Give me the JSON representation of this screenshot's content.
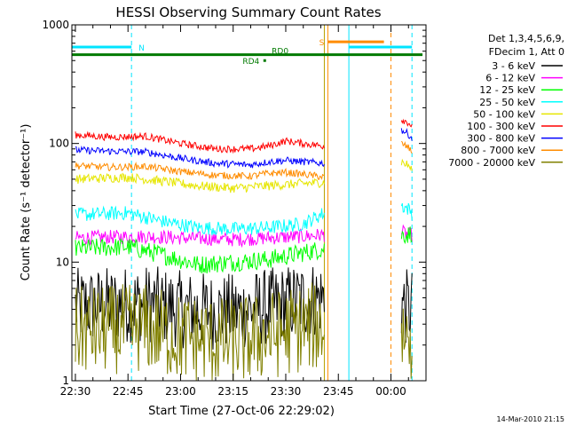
{
  "chart_data": {
    "type": "line",
    "title": "HESSI Observing Summary Count Rates",
    "xlabel": "Start Time (27-Oct-06 22:29:02)",
    "ylabel": "Count Rate (s⁻¹ detector⁻¹)",
    "yscale": "log",
    "ylim": [
      1,
      1000
    ],
    "xlim": [
      "22:29",
      "00:10"
    ],
    "x_ticks": [
      "22:30",
      "22:45",
      "23:00",
      "23:15",
      "23:30",
      "23:45",
      "00:00"
    ],
    "y_ticks": [
      "1",
      "10",
      "100",
      "1000"
    ],
    "grid": false,
    "legend_position": "right",
    "legend_header": [
      "Det 1,3,4,5,6,9,",
      "FDecim 1, Att 0"
    ],
    "footer_timestamp": "14-Mar-2010 21:15",
    "flags": [
      {
        "label": "N",
        "color": "#00e5ff",
        "y": 650,
        "segments": [
          [
            "22:29",
            "22:46"
          ],
          [
            "23:48",
            "00:06"
          ]
        ]
      },
      {
        "label": "S",
        "color": "#ff8c00",
        "y": 720,
        "segments": [
          [
            "23:42",
            "23:58"
          ]
        ]
      },
      {
        "label": "RD0",
        "color": "#007a00",
        "y": 560,
        "segments": [
          [
            "22:29",
            "00:09"
          ]
        ]
      },
      {
        "label": "RD4",
        "color": "#007a00",
        "y": 500,
        "segments": [
          [
            "23:24",
            "23:24"
          ]
        ]
      }
    ],
    "vlines": [
      {
        "time": "22:29",
        "color": "#00e5ff",
        "style": "solid"
      },
      {
        "time": "22:46",
        "color": "#00e5ff",
        "style": "dashed"
      },
      {
        "time": "23:41",
        "color": "#b8a000",
        "style": "solid"
      },
      {
        "time": "23:42",
        "color": "#ff8c00",
        "style": "solid"
      },
      {
        "time": "23:48",
        "color": "#00e5ff",
        "style": "solid"
      },
      {
        "time": "00:00",
        "color": "#ff8c00",
        "style": "dashed"
      },
      {
        "time": "00:06",
        "color": "#00e5ff",
        "style": "dashed"
      }
    ],
    "series": [
      {
        "name": "3 - 6 keV",
        "color": "#000000",
        "noise": 0.33,
        "segments": [
          {
            "times": [
              "22:30",
              "22:50",
              "23:00",
              "23:15",
              "23:25",
              "23:35",
              "23:41"
            ],
            "values": [
              4.2,
              4.5,
              4.0,
              3.8,
              4.2,
              4.8,
              5.0
            ]
          },
          {
            "times": [
              "00:03",
              "00:05",
              "00:06"
            ],
            "values": [
              4.5,
              4.0,
              4.2
            ]
          }
        ]
      },
      {
        "name": "6 - 12 keV",
        "color": "#ff00ff",
        "noise": 0.06,
        "segments": [
          {
            "times": [
              "22:30",
              "22:50",
              "23:00",
              "23:15",
              "23:25",
              "23:35",
              "23:41"
            ],
            "values": [
              16,
              16.5,
              16,
              15.5,
              16,
              16.5,
              17
            ]
          },
          {
            "times": [
              "00:03",
              "00:05",
              "00:06"
            ],
            "values": [
              18,
              17,
              17
            ]
          }
        ]
      },
      {
        "name": "12 - 25 keV",
        "color": "#00ff00",
        "noise": 0.08,
        "segments": [
          {
            "times": [
              "22:30",
              "22:45",
              "22:55",
              "23:05",
              "23:15",
              "23:25",
              "23:35",
              "23:41"
            ],
            "values": [
              13,
              13.5,
              11.5,
              9.5,
              10,
              10.5,
              12,
              13
            ]
          },
          {
            "times": [
              "00:03",
              "00:05",
              "00:06"
            ],
            "values": [
              17,
              17,
              18
            ]
          }
        ]
      },
      {
        "name": "25 - 50 keV",
        "color": "#00ffff",
        "noise": 0.06,
        "segments": [
          {
            "times": [
              "22:30",
              "22:45",
              "22:55",
              "23:05",
              "23:15",
              "23:25",
              "23:35",
              "23:41"
            ],
            "values": [
              25,
              26,
              22,
              19.5,
              19,
              19.5,
              21,
              26
            ]
          },
          {
            "times": [
              "00:03",
              "00:05",
              "00:06"
            ],
            "values": [
              30,
              28,
              26
            ]
          }
        ]
      },
      {
        "name": "50 - 100 keV",
        "color": "#e6e600",
        "noise": 0.04,
        "segments": [
          {
            "times": [
              "22:30",
              "22:45",
              "22:55",
              "23:05",
              "23:15",
              "23:25",
              "23:35",
              "23:41"
            ],
            "values": [
              50,
              52,
              48,
              44,
              42,
              44,
              46,
              47
            ]
          },
          {
            "times": [
              "00:03",
              "00:05",
              "00:06"
            ],
            "values": [
              70,
              65,
              60
            ]
          }
        ]
      },
      {
        "name": "100 - 300 keV",
        "color": "#ff0000",
        "noise": 0.03,
        "segments": [
          {
            "times": [
              "22:30",
              "22:40",
              "22:50",
              "23:00",
              "23:10",
              "23:20",
              "23:25",
              "23:30",
              "23:35",
              "23:41"
            ],
            "values": [
              118,
              113,
              115,
              100,
              90,
              90,
              95,
              105,
              100,
              95
            ]
          },
          {
            "times": [
              "00:03",
              "00:05",
              "00:06"
            ],
            "values": [
              160,
              150,
              140
            ]
          }
        ]
      },
      {
        "name": "300 - 800 keV",
        "color": "#0000ff",
        "noise": 0.03,
        "segments": [
          {
            "times": [
              "22:30",
              "22:40",
              "22:50",
              "23:00",
              "23:10",
              "23:20",
              "23:25",
              "23:30",
              "23:35",
              "23:41"
            ],
            "values": [
              88,
              86,
              85,
              75,
              68,
              66,
              70,
              72,
              70,
              68
            ]
          },
          {
            "times": [
              "00:03",
              "00:05",
              "00:06"
            ],
            "values": [
              130,
              120,
              110
            ]
          }
        ]
      },
      {
        "name": "800 - 7000 keV",
        "color": "#ff8c00",
        "noise": 0.03,
        "segments": [
          {
            "times": [
              "22:30",
              "22:40",
              "22:50",
              "23:00",
              "23:10",
              "23:20",
              "23:25",
              "23:30",
              "23:35",
              "23:41"
            ],
            "values": [
              65,
              63,
              64,
              58,
              54,
              53,
              56,
              57,
              55,
              52
            ]
          },
          {
            "times": [
              "00:03",
              "00:05",
              "00:06"
            ],
            "values": [
              100,
              92,
              85
            ]
          }
        ]
      },
      {
        "name": "7000 - 20000 keV",
        "color": "#808000",
        "noise": 0.38,
        "segments": [
          {
            "times": [
              "22:30",
              "22:50",
              "23:00",
              "23:15",
              "23:25",
              "23:35",
              "23:41"
            ],
            "values": [
              2.6,
              2.8,
              2.3,
              2.1,
              2.4,
              2.8,
              2.9
            ]
          },
          {
            "times": [
              "00:03",
              "00:05",
              "00:06"
            ],
            "values": [
              2.6,
              2.4,
              2.4
            ]
          }
        ]
      }
    ]
  }
}
